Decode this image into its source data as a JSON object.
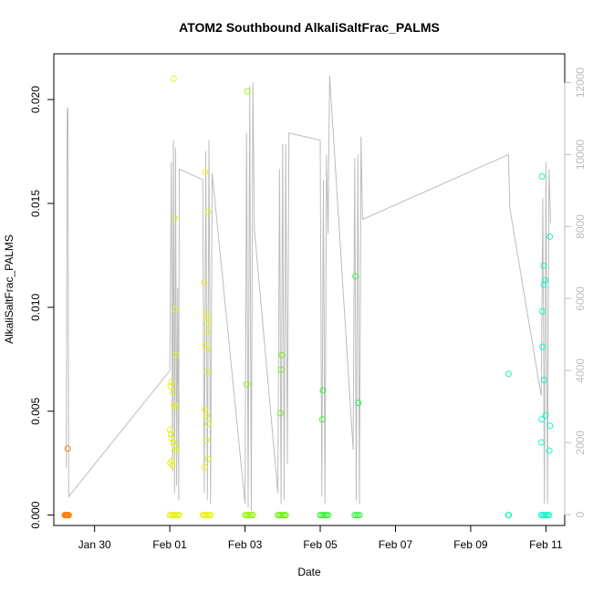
{
  "chart_data": {
    "type": "scatter",
    "title": "ATOM2 Southbound AlkaliSaltFrac_PALMS",
    "xlabel": "Date",
    "ylabel": "AlkaliSaltFrac_PALMS",
    "x_range": [
      "2017-01-28T22:00",
      "2017-02-11T12:00"
    ],
    "ylim": [
      -0.0005,
      0.0222
    ],
    "y2lim": [
      -300,
      12800
    ],
    "x_ticks": [
      {
        "label": "Jan 30",
        "date": "2017-01-30"
      },
      {
        "label": "Feb 01",
        "date": "2017-02-01"
      },
      {
        "label": "Feb 03",
        "date": "2017-02-03"
      },
      {
        "label": "Feb 05",
        "date": "2017-02-05"
      },
      {
        "label": "Feb 07",
        "date": "2017-02-07"
      },
      {
        "label": "Feb 09",
        "date": "2017-02-09"
      },
      {
        "label": "Feb 11",
        "date": "2017-02-11"
      }
    ],
    "y_ticks": [
      {
        "label": "0.000",
        "value": 0.0
      },
      {
        "label": "0.005",
        "value": 0.005
      },
      {
        "label": "0.010",
        "value": 0.01
      },
      {
        "label": "0.015",
        "value": 0.015
      },
      {
        "label": "0.020",
        "value": 0.02
      }
    ],
    "y2_ticks": [
      {
        "label": "0",
        "value": 0
      },
      {
        "label": "2000",
        "value": 2000
      },
      {
        "label": "4000",
        "value": 4000
      },
      {
        "label": "6000",
        "value": 6000
      },
      {
        "label": "8000",
        "value": 8000
      },
      {
        "label": "10000",
        "value": 10000
      },
      {
        "label": "12000",
        "value": 12000
      }
    ],
    "grid": false,
    "legend": "none",
    "colors": {
      "frame": "#000000",
      "altitude_line": "#bdbdbd",
      "right_axis": "#bdbdbd"
    },
    "altitude_series": [
      [
        "2017-01-29T06:00",
        1300
      ],
      [
        "2017-01-29T06:30",
        11200
      ],
      [
        "2017-01-29T07:00",
        11300
      ],
      [
        "2017-01-29T07:30",
        500
      ],
      [
        "2017-02-01T00:00",
        4000
      ],
      [
        "2017-02-01T01:00",
        9800
      ],
      [
        "2017-02-01T01:40",
        1200
      ],
      [
        "2017-02-01T02:20",
        10400
      ],
      [
        "2017-02-01T03:00",
        600
      ],
      [
        "2017-02-01T03:40",
        10200
      ],
      [
        "2017-02-01T04:20",
        800
      ],
      [
        "2017-02-01T05:00",
        6300
      ],
      [
        "2017-02-01T05:40",
        400
      ],
      [
        "2017-02-01T06:00",
        9600
      ],
      [
        "2017-02-01T21:00",
        9300
      ],
      [
        "2017-02-01T22:00",
        600
      ],
      [
        "2017-02-01T23:00",
        10100
      ],
      [
        "2017-02-02T00:00",
        400
      ],
      [
        "2017-02-02T01:00",
        10400
      ],
      [
        "2017-02-02T02:00",
        300
      ],
      [
        "2017-02-02T03:00",
        9500
      ],
      [
        "2017-02-03T00:00",
        300
      ],
      [
        "2017-02-03T01:00",
        10600
      ],
      [
        "2017-02-03T02:00",
        200
      ],
      [
        "2017-02-03T03:00",
        11900
      ],
      [
        "2017-02-03T04:00",
        100
      ],
      [
        "2017-02-03T05:00",
        12000
      ],
      [
        "2017-02-03T06:00",
        7900
      ],
      [
        "2017-02-03T21:00",
        600
      ],
      [
        "2017-02-03T22:00",
        9600
      ],
      [
        "2017-02-03T23:00",
        300
      ],
      [
        "2017-02-04T00:00",
        10300
      ],
      [
        "2017-02-04T01:00",
        400
      ],
      [
        "2017-02-04T02:00",
        10300
      ],
      [
        "2017-02-04T03:00",
        1400
      ],
      [
        "2017-02-04T04:00",
        10600
      ],
      [
        "2017-02-05T00:00",
        10400
      ],
      [
        "2017-02-05T01:00",
        500
      ],
      [
        "2017-02-05T02:00",
        9300
      ],
      [
        "2017-02-05T03:00",
        300
      ],
      [
        "2017-02-05T04:00",
        10000
      ],
      [
        "2017-02-05T05:00",
        7800
      ],
      [
        "2017-02-05T06:00",
        12200
      ],
      [
        "2017-02-05T21:00",
        1800
      ],
      [
        "2017-02-05T22:00",
        9900
      ],
      [
        "2017-02-05T23:00",
        400
      ],
      [
        "2017-02-06T00:00",
        10000
      ],
      [
        "2017-02-06T01:00",
        300
      ],
      [
        "2017-02-06T02:00",
        10500
      ],
      [
        "2017-02-06T03:00",
        8200
      ],
      [
        "2017-02-10T00:00",
        10000
      ],
      [
        "2017-02-10T01:00",
        8500
      ],
      [
        "2017-02-10T21:00",
        3300
      ],
      [
        "2017-02-10T22:00",
        8800
      ],
      [
        "2017-02-10T23:00",
        300
      ],
      [
        "2017-02-11T00:00",
        9800
      ],
      [
        "2017-02-11T01:00",
        300
      ],
      [
        "2017-02-11T02:00",
        9600
      ],
      [
        "2017-02-11T03:00",
        8100
      ]
    ],
    "series": [
      {
        "color": "#FF7F00",
        "points": [
          [
            "2017-01-29T05:00",
            0.0
          ],
          [
            "2017-01-29T05:30",
            0.0
          ],
          [
            "2017-01-29T06:00",
            0.0
          ],
          [
            "2017-01-29T06:30",
            0.0
          ],
          [
            "2017-01-29T07:00",
            0.0
          ],
          [
            "2017-01-29T07:30",
            0.0
          ],
          [
            "2017-01-29T06:50",
            0.0032
          ]
        ]
      },
      {
        "color": "#E6F21A",
        "points": [
          [
            "2017-02-01T00:00",
            0.0
          ],
          [
            "2017-02-01T01:00",
            0.0
          ],
          [
            "2017-02-01T02:00",
            0.0
          ],
          [
            "2017-02-01T03:00",
            0.0
          ],
          [
            "2017-02-01T04:00",
            0.0
          ],
          [
            "2017-02-01T05:00",
            0.0
          ],
          [
            "2017-02-01T06:00",
            0.0
          ],
          [
            "2017-02-01T02:30",
            0.021
          ],
          [
            "2017-02-01T03:00",
            0.0143
          ],
          [
            "2017-02-01T03:20",
            0.0099
          ],
          [
            "2017-02-01T00:30",
            0.0062
          ],
          [
            "2017-02-01T01:00",
            0.0064
          ],
          [
            "2017-02-01T02:00",
            0.0059
          ],
          [
            "2017-02-01T00:10",
            0.0041
          ],
          [
            "2017-02-01T00:40",
            0.0039
          ],
          [
            "2017-02-01T01:10",
            0.0037
          ],
          [
            "2017-02-01T02:10",
            0.0035
          ],
          [
            "2017-02-01T03:10",
            0.0033
          ],
          [
            "2017-02-01T03:50",
            0.0031
          ],
          [
            "2017-02-01T01:20",
            0.0026
          ],
          [
            "2017-02-01T01:40",
            0.0024
          ],
          [
            "2017-02-01T00:20",
            0.0025
          ],
          [
            "2017-02-01T02:40",
            0.0053
          ],
          [
            "2017-02-01T03:30",
            0.0052
          ],
          [
            "2017-02-01T04:00",
            0.0077
          ],
          [
            "2017-02-01T21:00",
            0.0
          ],
          [
            "2017-02-01T22:00",
            0.0
          ],
          [
            "2017-02-01T23:00",
            0.0
          ],
          [
            "2017-02-02T00:00",
            0.0
          ],
          [
            "2017-02-02T01:00",
            0.0
          ],
          [
            "2017-02-02T02:00",
            0.0
          ],
          [
            "2017-02-01T22:30",
            0.0165
          ],
          [
            "2017-02-02T00:30",
            0.0146
          ],
          [
            "2017-02-01T22:00",
            0.0112
          ],
          [
            "2017-02-01T23:00",
            0.0097
          ],
          [
            "2017-02-02T00:00",
            0.0095
          ],
          [
            "2017-02-02T01:00",
            0.0092
          ],
          [
            "2017-02-01T23:30",
            0.0088
          ],
          [
            "2017-02-01T22:40",
            0.0082
          ],
          [
            "2017-02-01T23:40",
            0.008
          ],
          [
            "2017-02-02T00:10",
            0.0069
          ],
          [
            "2017-02-01T22:20",
            0.0051
          ],
          [
            "2017-02-01T23:20",
            0.0048
          ],
          [
            "2017-02-02T00:40",
            0.0044
          ],
          [
            "2017-02-01T23:10",
            0.0036
          ],
          [
            "2017-02-02T00:20",
            0.0027
          ],
          [
            "2017-02-01T22:10",
            0.0023
          ]
        ]
      },
      {
        "color": "#9DF21A",
        "points": [
          [
            "2017-02-03T00:00",
            0.0
          ],
          [
            "2017-02-03T01:00",
            0.0
          ],
          [
            "2017-02-03T02:00",
            0.0
          ],
          [
            "2017-02-03T03:00",
            0.0
          ],
          [
            "2017-02-03T04:00",
            0.0
          ],
          [
            "2017-02-03T05:00",
            0.0
          ],
          [
            "2017-02-03T01:30",
            0.0204
          ],
          [
            "2017-02-03T01:00",
            0.0063
          ]
        ]
      },
      {
        "color": "#74F21A",
        "points": [
          [
            "2017-02-03T21:00",
            0.0
          ],
          [
            "2017-02-03T22:00",
            0.0
          ],
          [
            "2017-02-03T23:00",
            0.0
          ],
          [
            "2017-02-04T00:00",
            0.0
          ],
          [
            "2017-02-04T01:00",
            0.0
          ],
          [
            "2017-02-04T02:00",
            0.0
          ],
          [
            "2017-02-03T23:30",
            0.0077
          ],
          [
            "2017-02-03T23:00",
            0.007
          ],
          [
            "2017-02-03T22:40",
            0.0049
          ]
        ]
      },
      {
        "color": "#3DF23D",
        "points": [
          [
            "2017-02-05T00:00",
            0.0
          ],
          [
            "2017-02-05T01:00",
            0.0
          ],
          [
            "2017-02-05T02:00",
            0.0
          ],
          [
            "2017-02-05T03:00",
            0.0
          ],
          [
            "2017-02-05T04:00",
            0.0
          ],
          [
            "2017-02-05T05:00",
            0.0
          ],
          [
            "2017-02-05T01:40",
            0.006
          ],
          [
            "2017-02-05T01:20",
            0.0046
          ]
        ]
      },
      {
        "color": "#3DF24D",
        "points": [
          [
            "2017-02-05T22:00",
            0.0
          ],
          [
            "2017-02-05T23:00",
            0.0
          ],
          [
            "2017-02-06T00:00",
            0.0
          ],
          [
            "2017-02-06T01:00",
            0.0
          ],
          [
            "2017-02-05T22:30",
            0.0115
          ],
          [
            "2017-02-06T00:20",
            0.0054
          ]
        ]
      },
      {
        "color": "#1AF2AD",
        "points": [
          [
            "2017-02-10T00:00",
            0.0
          ],
          [
            "2017-02-10T00:20",
            0.0
          ],
          [
            "2017-02-10T00:10",
            0.0068
          ]
        ]
      },
      {
        "color": "#1AF2C8",
        "points": [
          [
            "2017-02-10T21:00",
            0.0
          ],
          [
            "2017-02-10T22:00",
            0.0
          ],
          [
            "2017-02-10T23:00",
            0.0
          ],
          [
            "2017-02-11T00:00",
            0.0
          ],
          [
            "2017-02-11T01:00",
            0.0
          ],
          [
            "2017-02-11T02:00",
            0.0
          ],
          [
            "2017-02-10T21:30",
            0.0163
          ],
          [
            "2017-02-11T02:30",
            0.0134
          ],
          [
            "2017-02-10T22:30",
            0.012
          ],
          [
            "2017-02-10T23:30",
            0.0113
          ],
          [
            "2017-02-10T22:40",
            0.0111
          ],
          [
            "2017-02-10T21:40",
            0.0098
          ],
          [
            "2017-02-10T21:50",
            0.0081
          ],
          [
            "2017-02-10T22:50",
            0.0065
          ],
          [
            "2017-02-10T23:50",
            0.0048
          ],
          [
            "2017-02-10T21:20",
            0.0046
          ],
          [
            "2017-02-11T02:40",
            0.0043
          ],
          [
            "2017-02-10T21:10",
            0.0035
          ],
          [
            "2017-02-11T02:10",
            0.0031
          ]
        ]
      }
    ]
  }
}
